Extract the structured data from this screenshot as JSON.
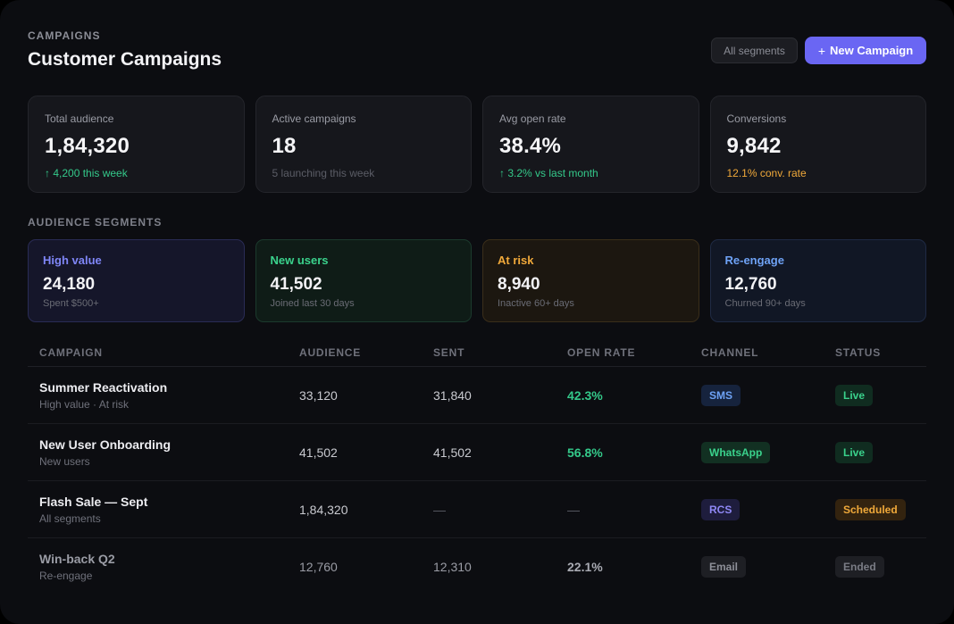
{
  "header": {
    "eyebrow": "CAMPAIGNS",
    "title": "Customer Campaigns",
    "segments_button": "All segments",
    "new_campaign_icon": "plus-icon",
    "new_campaign_label": "New Campaign"
  },
  "stats": [
    {
      "label": "Total audience",
      "value": "1,84,320",
      "sub": "↑ 4,200 this week",
      "sub_tone": "green"
    },
    {
      "label": "Active campaigns",
      "value": "18",
      "sub": "5 launching this week",
      "sub_tone": "muted"
    },
    {
      "label": "Avg open rate",
      "value": "38.4%",
      "sub": "↑ 3.2% vs last month",
      "sub_tone": "green"
    },
    {
      "label": "Conversions",
      "value": "9,842",
      "sub": "12.1% conv. rate",
      "sub_tone": "amber"
    }
  ],
  "segments_title": "AUDIENCE SEGMENTS",
  "segments": [
    {
      "name": "High value",
      "value": "24,180",
      "desc": "Spent $500+",
      "color": "#7f86f7"
    },
    {
      "name": "New users",
      "value": "41,502",
      "desc": "Joined last 30 days",
      "color": "#3ad28c"
    },
    {
      "name": "At risk",
      "value": "8,940",
      "desc": "Inactive 60+ days",
      "color": "#f0a93a"
    },
    {
      "name": "Re-engage",
      "value": "12,760",
      "desc": "Churned 90+ days",
      "color": "#6ea2f5"
    }
  ],
  "table": {
    "columns": [
      "CAMPAIGN",
      "AUDIENCE",
      "SENT",
      "OPEN RATE",
      "CHANNEL",
      "STATUS"
    ],
    "rows": [
      {
        "name": "Summer Reactivation",
        "segment": "High value · At risk",
        "audience": "33,120",
        "sent": "31,840",
        "open_rate": "42.3%",
        "channel": "SMS",
        "status": "Live"
      },
      {
        "name": "New User Onboarding",
        "segment": "New users",
        "audience": "41,502",
        "sent": "41,502",
        "open_rate": "56.8%",
        "channel": "WhatsApp",
        "status": "Live"
      },
      {
        "name": "Flash Sale — Sept",
        "segment": "All segments",
        "audience": "1,84,320",
        "sent": "—",
        "open_rate": "—",
        "channel": "RCS",
        "status": "Scheduled"
      },
      {
        "name": "Win-back Q2",
        "segment": "Re-engage",
        "audience": "12,760",
        "sent": "12,310",
        "open_rate": "22.1%",
        "channel": "Email",
        "status": "Ended"
      }
    ]
  }
}
